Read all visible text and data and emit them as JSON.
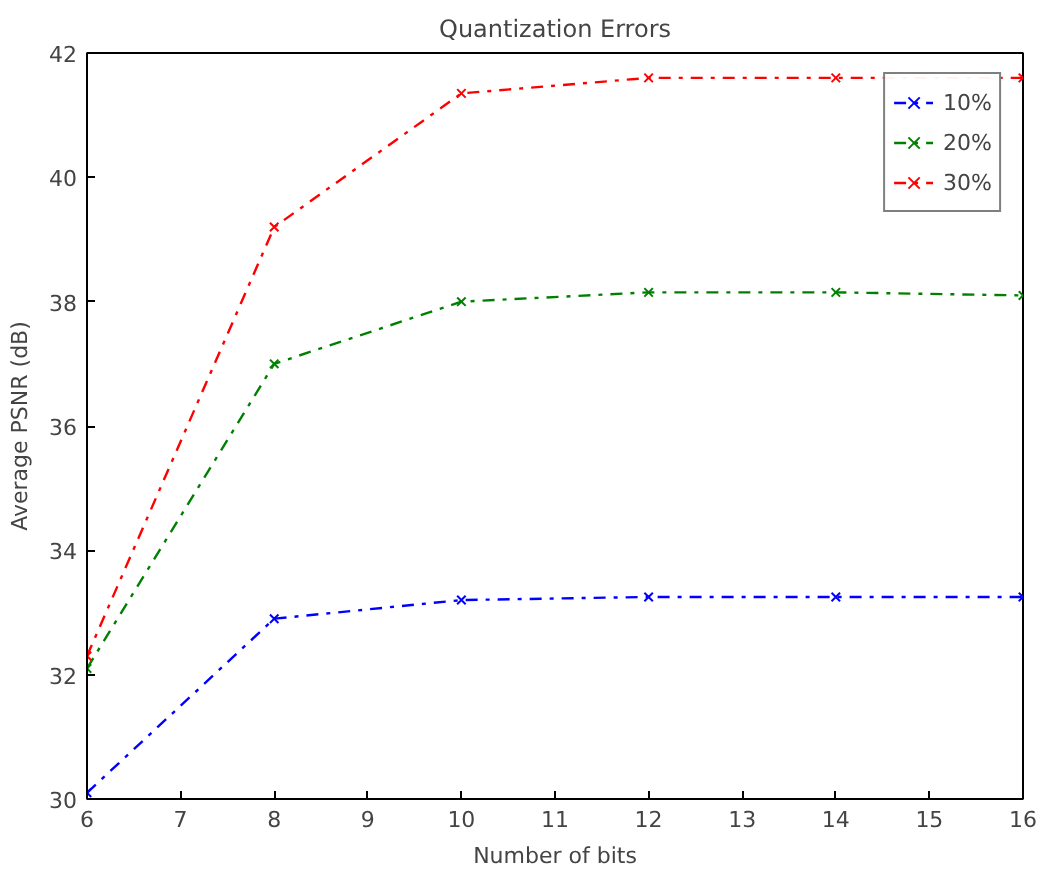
{
  "chart_data": {
    "type": "line",
    "title": "Quantization Errors",
    "xlabel": "Number of bits",
    "ylabel": "Average PSNR (dB)",
    "x": [
      6,
      8,
      10,
      12,
      14,
      16
    ],
    "series": [
      {
        "name": "10%",
        "color": "#0000ff",
        "values": [
          30.1,
          32.9,
          33.2,
          33.25,
          33.25,
          33.25
        ]
      },
      {
        "name": "20%",
        "color": "#008000",
        "values": [
          32.1,
          37.0,
          38.0,
          38.15,
          38.15,
          38.1
        ]
      },
      {
        "name": "30%",
        "color": "#ff0000",
        "values": [
          32.3,
          39.2,
          41.35,
          41.6,
          41.6,
          41.6
        ]
      }
    ],
    "xlim": [
      6,
      16
    ],
    "xticks": [
      6,
      7,
      8,
      9,
      10,
      11,
      12,
      13,
      14,
      15,
      16
    ],
    "ylim": [
      30,
      42
    ],
    "yticks": [
      30,
      32,
      34,
      36,
      38,
      40,
      42
    ],
    "legend": "top right",
    "marker": "cross",
    "line_style": "dashed",
    "grid": false
  }
}
